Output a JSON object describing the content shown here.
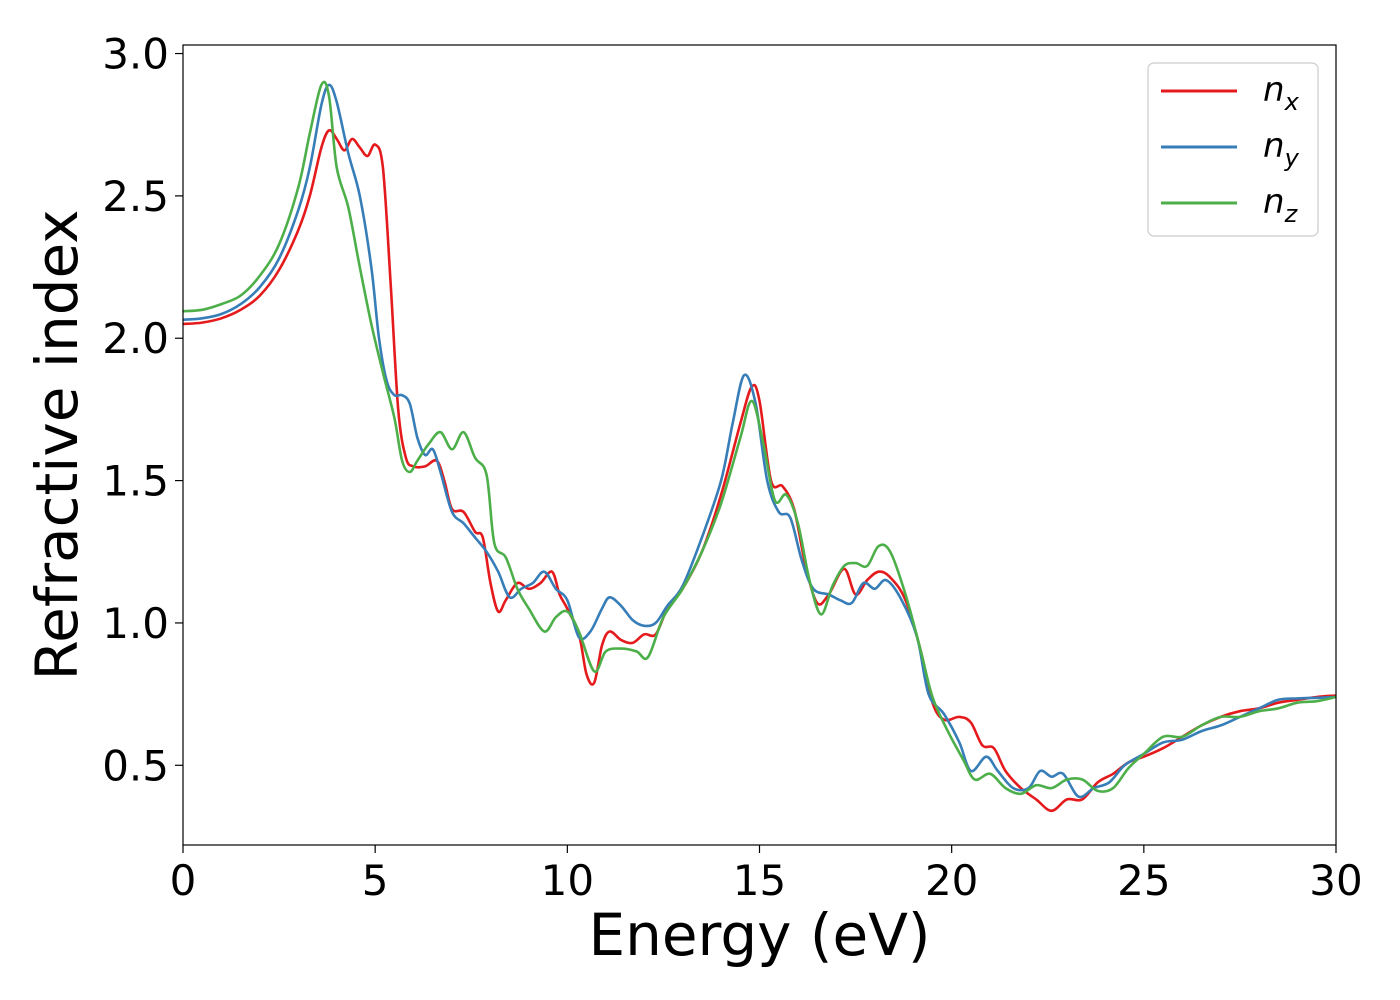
{
  "chart_data": {
    "type": "line",
    "title": "",
    "xlabel": "Energy (eV)",
    "ylabel": "Refractive index",
    "xlim": [
      0,
      30
    ],
    "ylim": [
      0.22,
      3.03
    ],
    "xticks": [
      0,
      5,
      10,
      15,
      20,
      25,
      30
    ],
    "yticks": [
      0.5,
      1.0,
      1.5,
      2.0,
      2.5,
      3.0
    ],
    "xtick_labels": [
      "0",
      "5",
      "10",
      "15",
      "20",
      "25",
      "30"
    ],
    "ytick_labels": [
      "0.5",
      "1.0",
      "1.5",
      "2.0",
      "2.5",
      "3.0"
    ],
    "grid": false,
    "legend_position": "top-right",
    "series": [
      {
        "name": "n_x",
        "label_base": "n",
        "label_sub": "x",
        "color": "#e41a1c",
        "points": [
          [
            0,
            2.05
          ],
          [
            0.5,
            2.055
          ],
          [
            1,
            2.07
          ],
          [
            1.5,
            2.1
          ],
          [
            2,
            2.15
          ],
          [
            2.5,
            2.24
          ],
          [
            3,
            2.38
          ],
          [
            3.3,
            2.5
          ],
          [
            3.6,
            2.67
          ],
          [
            3.8,
            2.73
          ],
          [
            4.0,
            2.7
          ],
          [
            4.2,
            2.66
          ],
          [
            4.4,
            2.7
          ],
          [
            4.6,
            2.67
          ],
          [
            4.8,
            2.64
          ],
          [
            5.0,
            2.68
          ],
          [
            5.2,
            2.6
          ],
          [
            5.4,
            2.2
          ],
          [
            5.6,
            1.75
          ],
          [
            5.8,
            1.58
          ],
          [
            6.0,
            1.55
          ],
          [
            6.3,
            1.55
          ],
          [
            6.6,
            1.57
          ],
          [
            6.8,
            1.5
          ],
          [
            7.0,
            1.4
          ],
          [
            7.3,
            1.39
          ],
          [
            7.6,
            1.32
          ],
          [
            7.8,
            1.3
          ],
          [
            8.0,
            1.14
          ],
          [
            8.2,
            1.04
          ],
          [
            8.4,
            1.08
          ],
          [
            8.7,
            1.14
          ],
          [
            9.0,
            1.12
          ],
          [
            9.3,
            1.14
          ],
          [
            9.6,
            1.18
          ],
          [
            9.8,
            1.1
          ],
          [
            10.0,
            1.05
          ],
          [
            10.3,
            0.96
          ],
          [
            10.5,
            0.82
          ],
          [
            10.7,
            0.79
          ],
          [
            10.9,
            0.92
          ],
          [
            11.1,
            0.97
          ],
          [
            11.4,
            0.94
          ],
          [
            11.7,
            0.93
          ],
          [
            12.0,
            0.96
          ],
          [
            12.3,
            0.96
          ],
          [
            12.6,
            1.05
          ],
          [
            13.0,
            1.12
          ],
          [
            13.5,
            1.25
          ],
          [
            14.0,
            1.45
          ],
          [
            14.5,
            1.7
          ],
          [
            14.8,
            1.83
          ],
          [
            15.0,
            1.78
          ],
          [
            15.3,
            1.5
          ],
          [
            15.6,
            1.48
          ],
          [
            15.9,
            1.4
          ],
          [
            16.2,
            1.2
          ],
          [
            16.5,
            1.07
          ],
          [
            16.8,
            1.1
          ],
          [
            17.2,
            1.19
          ],
          [
            17.5,
            1.1
          ],
          [
            17.8,
            1.15
          ],
          [
            18.1,
            1.18
          ],
          [
            18.4,
            1.16
          ],
          [
            18.8,
            1.08
          ],
          [
            19.2,
            0.9
          ],
          [
            19.5,
            0.72
          ],
          [
            19.8,
            0.66
          ],
          [
            20.2,
            0.67
          ],
          [
            20.5,
            0.65
          ],
          [
            20.8,
            0.57
          ],
          [
            21.1,
            0.56
          ],
          [
            21.4,
            0.48
          ],
          [
            21.8,
            0.42
          ],
          [
            22.2,
            0.38
          ],
          [
            22.6,
            0.34
          ],
          [
            23.0,
            0.38
          ],
          [
            23.4,
            0.38
          ],
          [
            23.8,
            0.44
          ],
          [
            24.2,
            0.47
          ],
          [
            24.6,
            0.51
          ],
          [
            25.0,
            0.53
          ],
          [
            25.5,
            0.56
          ],
          [
            26.0,
            0.6
          ],
          [
            26.5,
            0.64
          ],
          [
            27.0,
            0.67
          ],
          [
            27.5,
            0.69
          ],
          [
            28.0,
            0.7
          ],
          [
            28.5,
            0.72
          ],
          [
            29.0,
            0.73
          ],
          [
            29.5,
            0.74
          ],
          [
            30.0,
            0.745
          ]
        ]
      },
      {
        "name": "n_y",
        "label_base": "n",
        "label_sub": "y",
        "color": "#377eb8",
        "points": [
          [
            0,
            2.065
          ],
          [
            0.5,
            2.07
          ],
          [
            1,
            2.085
          ],
          [
            1.5,
            2.12
          ],
          [
            2,
            2.18
          ],
          [
            2.5,
            2.28
          ],
          [
            3,
            2.45
          ],
          [
            3.3,
            2.6
          ],
          [
            3.6,
            2.82
          ],
          [
            3.8,
            2.89
          ],
          [
            4.0,
            2.83
          ],
          [
            4.3,
            2.65
          ],
          [
            4.6,
            2.5
          ],
          [
            4.9,
            2.25
          ],
          [
            5.1,
            2.0
          ],
          [
            5.3,
            1.85
          ],
          [
            5.5,
            1.8
          ],
          [
            5.7,
            1.8
          ],
          [
            5.9,
            1.77
          ],
          [
            6.1,
            1.65
          ],
          [
            6.3,
            1.59
          ],
          [
            6.5,
            1.61
          ],
          [
            6.7,
            1.53
          ],
          [
            7.0,
            1.39
          ],
          [
            7.3,
            1.35
          ],
          [
            7.6,
            1.3
          ],
          [
            7.9,
            1.25
          ],
          [
            8.2,
            1.18
          ],
          [
            8.5,
            1.09
          ],
          [
            8.8,
            1.12
          ],
          [
            9.1,
            1.14
          ],
          [
            9.4,
            1.18
          ],
          [
            9.7,
            1.12
          ],
          [
            10.0,
            1.08
          ],
          [
            10.3,
            0.95
          ],
          [
            10.6,
            0.97
          ],
          [
            10.9,
            1.05
          ],
          [
            11.1,
            1.09
          ],
          [
            11.4,
            1.06
          ],
          [
            11.7,
            1.01
          ],
          [
            12.0,
            0.99
          ],
          [
            12.3,
            1.0
          ],
          [
            12.6,
            1.06
          ],
          [
            13.0,
            1.13
          ],
          [
            13.5,
            1.3
          ],
          [
            14.0,
            1.5
          ],
          [
            14.3,
            1.7
          ],
          [
            14.6,
            1.87
          ],
          [
            14.9,
            1.77
          ],
          [
            15.2,
            1.5
          ],
          [
            15.5,
            1.39
          ],
          [
            15.8,
            1.37
          ],
          [
            16.1,
            1.22
          ],
          [
            16.4,
            1.12
          ],
          [
            16.8,
            1.1
          ],
          [
            17.1,
            1.08
          ],
          [
            17.4,
            1.07
          ],
          [
            17.7,
            1.14
          ],
          [
            18.0,
            1.12
          ],
          [
            18.3,
            1.15
          ],
          [
            18.7,
            1.08
          ],
          [
            19.1,
            0.95
          ],
          [
            19.4,
            0.75
          ],
          [
            19.8,
            0.68
          ],
          [
            20.2,
            0.58
          ],
          [
            20.5,
            0.48
          ],
          [
            20.9,
            0.53
          ],
          [
            21.2,
            0.48
          ],
          [
            21.6,
            0.42
          ],
          [
            22.0,
            0.42
          ],
          [
            22.3,
            0.48
          ],
          [
            22.6,
            0.46
          ],
          [
            22.9,
            0.47
          ],
          [
            23.3,
            0.39
          ],
          [
            23.7,
            0.42
          ],
          [
            24.1,
            0.44
          ],
          [
            24.5,
            0.5
          ],
          [
            25.0,
            0.54
          ],
          [
            25.5,
            0.58
          ],
          [
            26.0,
            0.59
          ],
          [
            26.5,
            0.62
          ],
          [
            27.0,
            0.64
          ],
          [
            27.5,
            0.67
          ],
          [
            28.0,
            0.7
          ],
          [
            28.5,
            0.73
          ],
          [
            29.0,
            0.735
          ],
          [
            29.5,
            0.737
          ],
          [
            30.0,
            0.74
          ]
        ]
      },
      {
        "name": "n_z",
        "label_base": "n",
        "label_sub": "z",
        "color": "#4daf4a",
        "points": [
          [
            0,
            2.095
          ],
          [
            0.5,
            2.1
          ],
          [
            1,
            2.12
          ],
          [
            1.5,
            2.15
          ],
          [
            2,
            2.22
          ],
          [
            2.5,
            2.33
          ],
          [
            3,
            2.53
          ],
          [
            3.3,
            2.72
          ],
          [
            3.6,
            2.89
          ],
          [
            3.8,
            2.85
          ],
          [
            4.0,
            2.6
          ],
          [
            4.3,
            2.46
          ],
          [
            4.6,
            2.25
          ],
          [
            4.9,
            2.05
          ],
          [
            5.2,
            1.88
          ],
          [
            5.5,
            1.72
          ],
          [
            5.7,
            1.57
          ],
          [
            5.9,
            1.53
          ],
          [
            6.1,
            1.57
          ],
          [
            6.4,
            1.63
          ],
          [
            6.7,
            1.67
          ],
          [
            7.0,
            1.61
          ],
          [
            7.3,
            1.67
          ],
          [
            7.6,
            1.58
          ],
          [
            7.9,
            1.52
          ],
          [
            8.1,
            1.28
          ],
          [
            8.4,
            1.23
          ],
          [
            8.7,
            1.12
          ],
          [
            9.0,
            1.05
          ],
          [
            9.4,
            0.97
          ],
          [
            9.7,
            1.02
          ],
          [
            10.0,
            1.04
          ],
          [
            10.3,
            0.97
          ],
          [
            10.7,
            0.83
          ],
          [
            11.0,
            0.9
          ],
          [
            11.4,
            0.91
          ],
          [
            11.8,
            0.9
          ],
          [
            12.1,
            0.88
          ],
          [
            12.5,
            1.02
          ],
          [
            13.0,
            1.12
          ],
          [
            13.5,
            1.25
          ],
          [
            14.0,
            1.42
          ],
          [
            14.5,
            1.65
          ],
          [
            14.8,
            1.78
          ],
          [
            15.1,
            1.63
          ],
          [
            15.4,
            1.43
          ],
          [
            15.7,
            1.45
          ],
          [
            16.0,
            1.35
          ],
          [
            16.3,
            1.15
          ],
          [
            16.6,
            1.03
          ],
          [
            16.9,
            1.13
          ],
          [
            17.2,
            1.2
          ],
          [
            17.5,
            1.21
          ],
          [
            17.8,
            1.2
          ],
          [
            18.1,
            1.27
          ],
          [
            18.4,
            1.25
          ],
          [
            18.8,
            1.1
          ],
          [
            19.2,
            0.9
          ],
          [
            19.5,
            0.74
          ],
          [
            19.9,
            0.62
          ],
          [
            20.3,
            0.52
          ],
          [
            20.6,
            0.45
          ],
          [
            21.0,
            0.47
          ],
          [
            21.4,
            0.42
          ],
          [
            21.8,
            0.4
          ],
          [
            22.2,
            0.43
          ],
          [
            22.6,
            0.42
          ],
          [
            23.0,
            0.45
          ],
          [
            23.4,
            0.45
          ],
          [
            23.8,
            0.41
          ],
          [
            24.2,
            0.42
          ],
          [
            24.6,
            0.49
          ],
          [
            25.0,
            0.54
          ],
          [
            25.5,
            0.6
          ],
          [
            26.0,
            0.6
          ],
          [
            26.5,
            0.64
          ],
          [
            27.0,
            0.67
          ],
          [
            27.5,
            0.67
          ],
          [
            28.0,
            0.69
          ],
          [
            28.5,
            0.7
          ],
          [
            29.0,
            0.72
          ],
          [
            29.5,
            0.725
          ],
          [
            30.0,
            0.74
          ]
        ]
      }
    ]
  }
}
